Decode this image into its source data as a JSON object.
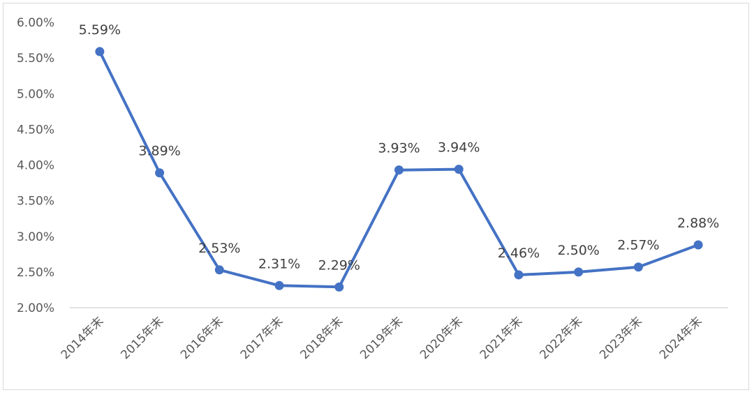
{
  "chart_data": {
    "type": "line",
    "title": "",
    "xlabel": "",
    "ylabel": "",
    "categories": [
      "2014年末",
      "2015年末",
      "2016年末",
      "2017年末",
      "2018年末",
      "2019年末",
      "2020年末",
      "2021年末",
      "2022年末",
      "2023年末",
      "2024年末"
    ],
    "values": [
      5.59,
      3.89,
      2.53,
      2.31,
      2.29,
      3.93,
      3.94,
      2.46,
      2.5,
      2.57,
      2.88
    ],
    "data_labels": [
      "5.59%",
      "3.89%",
      "2.53%",
      "2.31%",
      "2.29%",
      "3.93%",
      "3.94%",
      "2.46%",
      "2.50%",
      "2.57%",
      "2.88%"
    ],
    "y_ticks": [
      "2.00%",
      "2.50%",
      "3.00%",
      "3.50%",
      "4.00%",
      "4.50%",
      "5.00%",
      "5.50%",
      "6.00%"
    ],
    "ylim": [
      2.0,
      6.0
    ],
    "grid": false,
    "legend": "none",
    "line_color": "#4472c4"
  }
}
